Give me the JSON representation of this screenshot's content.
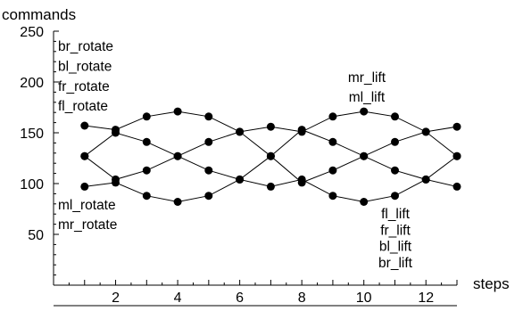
{
  "chart_data": {
    "type": "line",
    "xlabel": "steps",
    "ylabel": "commands",
    "xlim": [
      0,
      13
    ],
    "ylim": [
      0,
      250
    ],
    "xticks": [
      2,
      4,
      6,
      8,
      10,
      12
    ],
    "yticks": [
      50,
      100,
      150,
      200,
      250
    ],
    "grid": false,
    "x": [
      1,
      2,
      3,
      4,
      5,
      6,
      7,
      8,
      9,
      10,
      11,
      12,
      13
    ],
    "series": [
      {
        "values": [
          157,
          153,
          166,
          171,
          166,
          151,
          156,
          151,
          166,
          171,
          166,
          151,
          156
        ]
      },
      {
        "values": [
          127,
          150,
          141,
          127,
          141,
          151,
          127,
          153,
          141,
          127,
          113,
          104,
          127
        ]
      },
      {
        "values": [
          127,
          104,
          113,
          127,
          113,
          104,
          127,
          101,
          113,
          127,
          141,
          151,
          127
        ]
      },
      {
        "values": [
          97,
          101,
          88,
          82,
          88,
          104,
          97,
          104,
          88,
          82,
          88,
          104,
          97
        ]
      }
    ],
    "annotations": {
      "top_left": [
        "br_rotate",
        "bl_rotate",
        "fr_rotate",
        "fl_rotate"
      ],
      "bottom_left": [
        "ml_rotate",
        "mr_rotate"
      ],
      "top_right": [
        "mr_lift",
        "ml_lift"
      ],
      "bottom_right": [
        "fl_lift",
        "fr_lift",
        "bl_lift",
        "br_lift"
      ]
    }
  }
}
